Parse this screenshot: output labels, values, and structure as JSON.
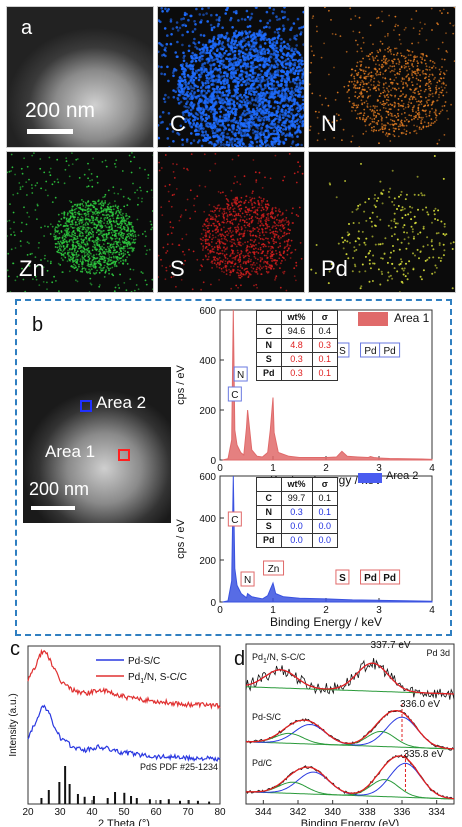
{
  "panel_a": {
    "letter": "a",
    "scale_text": "200 nm",
    "tiles": [
      {
        "label": "",
        "kind": "haadf"
      },
      {
        "label": "C",
        "color": "#1e6cff",
        "kind": "dense"
      },
      {
        "label": "N",
        "color": "#e07b22",
        "kind": "sparse"
      },
      {
        "label": "Zn",
        "color": "#2ecc40",
        "kind": "medium"
      },
      {
        "label": "S",
        "color": "#d11e1e",
        "kind": "medium"
      },
      {
        "label": "Pd",
        "color": "#d8e03a",
        "kind": "dots"
      }
    ]
  },
  "panel_b": {
    "letter": "b",
    "scale_text": "200 nm",
    "area1_label": "Area 1",
    "area2_label": "Area 2",
    "ylabel": "cps / eV",
    "xlabel": "Binding Energy / keV",
    "table_header": [
      "",
      "wt%",
      "σ"
    ],
    "area1_table": [
      [
        "C",
        "94.6",
        "0.4"
      ],
      [
        "N",
        "4.8",
        "0.3"
      ],
      [
        "S",
        "0.3",
        "0.1"
      ],
      [
        "Pd",
        "0.3",
        "0.1"
      ]
    ],
    "area2_table": [
      [
        "C",
        "99.7",
        "0.1"
      ],
      [
        "N",
        "0.3",
        "0.1"
      ],
      [
        "S",
        "0.0",
        "0.0"
      ],
      [
        "Pd",
        "0.0",
        "0.0"
      ]
    ],
    "legend1": "Area 1",
    "legend2": "Area 2",
    "peak_labels": [
      "C",
      "N",
      "Zn",
      "S",
      "Pd",
      "Pd"
    ]
  },
  "panel_c": {
    "letter": "c"
  },
  "panel_d": {
    "letter": "d"
  },
  "chart_data": [
    {
      "type": "area",
      "title": "Area 1",
      "xlabel": "Binding Energy / keV",
      "ylabel": "cps / eV",
      "xlim": [
        0,
        4
      ],
      "ylim": [
        0,
        600
      ],
      "xticks": [
        "0",
        "1",
        "2",
        "3",
        "4"
      ],
      "yticks": [
        "0",
        "200",
        "400",
        "600"
      ],
      "color": "#e06a6a",
      "series": [
        {
          "name": "Area 1",
          "x": [
            0.05,
            0.15,
            0.22,
            0.25,
            0.28,
            0.32,
            0.39,
            0.45,
            0.5,
            0.52,
            0.6,
            0.7,
            0.8,
            0.9,
            0.95,
            1.0,
            1.02,
            1.1,
            1.3,
            1.5,
            1.8,
            2.0,
            2.2,
            2.3,
            2.4,
            2.6,
            2.8,
            2.84,
            2.9,
            3.0,
            3.2,
            3.5,
            3.8,
            4.0
          ],
          "y": [
            0,
            5,
            80,
            600,
            120,
            60,
            30,
            20,
            130,
            200,
            40,
            15,
            12,
            30,
            120,
            250,
            110,
            30,
            15,
            10,
            10,
            10,
            12,
            35,
            15,
            12,
            10,
            14,
            10,
            8,
            6,
            5,
            4,
            3
          ]
        }
      ],
      "peaks": [
        {
          "label": "C",
          "x": 0.28
        },
        {
          "label": "N",
          "x": 0.39
        },
        {
          "label": "Zn",
          "x": 1.01
        },
        {
          "label": "S",
          "x": 2.31
        },
        {
          "label": "Pd",
          "x": 2.84
        },
        {
          "label": "Pd",
          "x": 3.2
        }
      ]
    },
    {
      "type": "area",
      "title": "Area 2",
      "xlabel": "Binding Energy / keV",
      "ylabel": "cps / eV",
      "xlim": [
        0,
        4
      ],
      "ylim": [
        0,
        600
      ],
      "xticks": [
        "0",
        "1",
        "2",
        "3",
        "4"
      ],
      "yticks": [
        "0",
        "200",
        "400",
        "600"
      ],
      "color": "#3a52e0",
      "series": [
        {
          "name": "Area 2",
          "x": [
            0.05,
            0.15,
            0.22,
            0.25,
            0.28,
            0.32,
            0.4,
            0.5,
            0.52,
            0.6,
            0.8,
            0.9,
            0.95,
            1.0,
            1.05,
            1.2,
            1.5,
            2.0,
            2.3,
            2.5,
            3.0,
            3.5,
            4.0
          ],
          "y": [
            0,
            5,
            100,
            600,
            160,
            80,
            40,
            20,
            40,
            25,
            15,
            30,
            60,
            90,
            40,
            25,
            18,
            15,
            12,
            10,
            8,
            6,
            4
          ]
        }
      ],
      "peaks": [
        {
          "label": "C",
          "x": 0.28
        },
        {
          "label": "N",
          "x": 0.52
        },
        {
          "label": "Zn",
          "x": 1.01
        },
        {
          "label": "S",
          "x": 2.31
        },
        {
          "label": "Pd",
          "x": 2.84
        },
        {
          "label": "Pd",
          "x": 3.2
        }
      ]
    },
    {
      "type": "line",
      "xlabel": "2 Theta (°)",
      "ylabel": "Intensity (a.u.)",
      "xlim": [
        20,
        80
      ],
      "xticks": [
        "20",
        "30",
        "40",
        "50",
        "60",
        "70",
        "80"
      ],
      "series": [
        {
          "name": "Pd-S/C",
          "color": "#2a38e0",
          "x": [
            20,
            22,
            24,
            25,
            26,
            28,
            30,
            34,
            38,
            42,
            45,
            48,
            52,
            56,
            60,
            65,
            70,
            75,
            80
          ],
          "y": [
            0.42,
            0.5,
            0.6,
            0.62,
            0.6,
            0.5,
            0.42,
            0.36,
            0.34,
            0.36,
            0.35,
            0.33,
            0.32,
            0.31,
            0.3,
            0.3,
            0.29,
            0.29,
            0.28
          ]
        },
        {
          "name": "Pd1/N, S-C/C",
          "color": "#e03030",
          "x": [
            20,
            22,
            24,
            25,
            26,
            28,
            30,
            34,
            38,
            42,
            45,
            48,
            52,
            56,
            60,
            65,
            70,
            75,
            80
          ],
          "y": [
            0.78,
            0.86,
            0.95,
            0.97,
            0.95,
            0.86,
            0.78,
            0.72,
            0.7,
            0.72,
            0.71,
            0.69,
            0.67,
            0.66,
            0.65,
            0.64,
            0.63,
            0.63,
            0.62
          ]
        }
      ],
      "reference": {
        "label": "PdS PDF #25-1234",
        "x": [
          24.2,
          26.5,
          29.8,
          31.6,
          33.0,
          35.6,
          37.7,
          40.6,
          44.9,
          47.2,
          50.1,
          52.2,
          54.0,
          58.1,
          61.4,
          64.0,
          67.5,
          70.2,
          73.1,
          76.6
        ],
        "h": [
          0.15,
          0.35,
          0.55,
          0.95,
          0.5,
          0.25,
          0.18,
          0.2,
          0.15,
          0.3,
          0.28,
          0.2,
          0.15,
          0.12,
          0.1,
          0.12,
          0.08,
          0.1,
          0.08,
          0.06
        ]
      }
    },
    {
      "type": "line",
      "title": "Pd 3d",
      "xlabel": "Binding Energy (eV)",
      "ylabel": "",
      "xlim": [
        345,
        333
      ],
      "xticks": [
        "344",
        "342",
        "340",
        "338",
        "336",
        "334"
      ],
      "series": [
        {
          "name": "Pd1/N, S-C/C",
          "annotation": "337.7 eV"
        },
        {
          "name": "Pd-S/C",
          "annotation": "336.0 eV"
        },
        {
          "name": "Pd/C",
          "annotation": "335.8 eV"
        }
      ]
    }
  ]
}
